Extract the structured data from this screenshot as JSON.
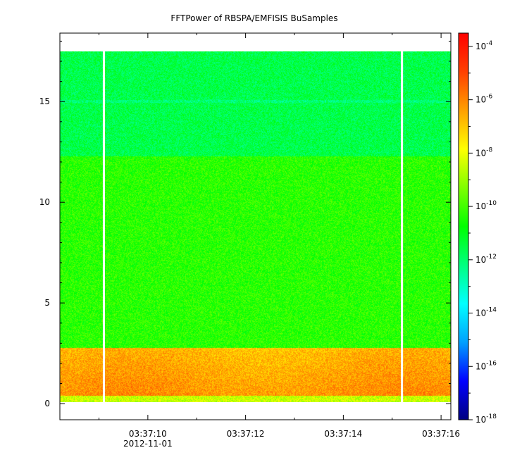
{
  "chart_data": {
    "type": "heatmap",
    "title": "FFTPower of RBSPA/EMFISIS  BuSamples",
    "xlabel": "",
    "ylabel": "",
    "x_range_seconds": [
      "03:37:08.2",
      "03:37:16.2"
    ],
    "x_ticks": [
      {
        "label": "03:37:10",
        "value": "03:37:10"
      },
      {
        "label": "03:37:12",
        "value": "03:37:12"
      },
      {
        "label": "03:37:14",
        "value": "03:37:14"
      },
      {
        "label": "03:37:16",
        "value": "03:37:16"
      }
    ],
    "x_date_label": "2012-11-01",
    "ylim": [
      -0.8,
      18.4
    ],
    "y_ticks": [
      0,
      5,
      10,
      15
    ],
    "data_y_extent": [
      0,
      17.5
    ],
    "colorbar": {
      "scale": "log",
      "range": [
        "1e-18",
        "1e-3.5"
      ],
      "ticks": [
        {
          "base": "10",
          "exp": "-4",
          "log": -4
        },
        {
          "base": "10",
          "exp": "-6",
          "log": -6
        },
        {
          "base": "10",
          "exp": "-8",
          "log": -8
        },
        {
          "base": "10",
          "exp": "-10",
          "log": -10
        },
        {
          "base": "10",
          "exp": "-12",
          "log": -12
        },
        {
          "base": "10",
          "exp": "-14",
          "log": -14
        },
        {
          "base": "10",
          "exp": "-16",
          "log": -16
        },
        {
          "base": "10",
          "exp": "-18",
          "log": -18
        }
      ],
      "colors": [
        "#000080",
        "#0000ff",
        "#00a0ff",
        "#00ffff",
        "#00ff80",
        "#00ff00",
        "#80ff00",
        "#ffff00",
        "#ffa000",
        "#ff4000",
        "#ff0000"
      ]
    },
    "frequency_bands": [
      {
        "y_from": 0,
        "y_to": 0.4,
        "log_power": -8.5
      },
      {
        "y_from": 0.4,
        "y_to": 2.8,
        "log_power": -6.4
      },
      {
        "y_from": 2.8,
        "y_to": 12.3,
        "log_power": -10.3
      },
      {
        "y_from": 12.3,
        "y_to": 17.5,
        "log_power": -11.6
      }
    ],
    "data_gaps_seconds": [
      "03:37:09.1",
      "03:37:15.2"
    ],
    "grid": false,
    "colors": {
      "axis": "#000000",
      "background": "#ffffff"
    }
  }
}
